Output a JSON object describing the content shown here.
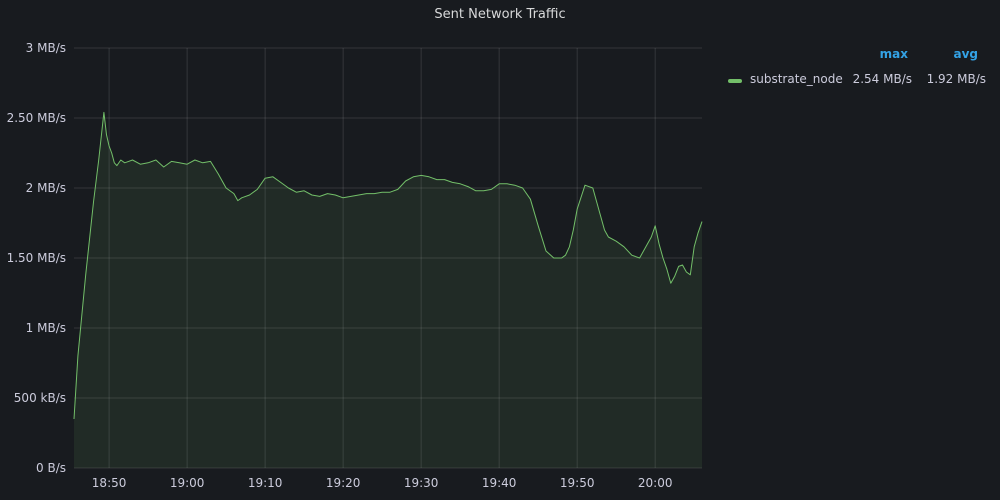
{
  "panel": {
    "title": "Sent Network Traffic"
  },
  "legend": {
    "header_max": "max",
    "header_avg": "avg",
    "series": [
      {
        "name": "substrate_node",
        "max": "2.54 MB/s",
        "avg": "1.92 MB/s",
        "color": "#73bf69"
      }
    ]
  },
  "chart_data": {
    "type": "area",
    "title": "Sent Network Traffic",
    "xlabel": "",
    "ylabel": "",
    "ylim": [
      0,
      3
    ],
    "y_unit": "MB/s",
    "y_ticks": [
      {
        "value": 0,
        "label": "0 B/s"
      },
      {
        "value": 0.5,
        "label": "500 kB/s"
      },
      {
        "value": 1,
        "label": "1 MB/s"
      },
      {
        "value": 1.5,
        "label": "1.50 MB/s"
      },
      {
        "value": 2,
        "label": "2 MB/s"
      },
      {
        "value": 2.5,
        "label": "2.50 MB/s"
      },
      {
        "value": 3,
        "label": "3 MB/s"
      }
    ],
    "xlim": [
      "18:45:30",
      "20:06:00"
    ],
    "x_ticks": [
      "18:50",
      "19:00",
      "19:10",
      "19:20",
      "19:30",
      "19:40",
      "19:50",
      "20:00"
    ],
    "grid": true,
    "legend_placement": "right",
    "series": [
      {
        "name": "substrate_node",
        "color": "#73bf69",
        "x": [
          "18:45:30",
          "18:46:00",
          "18:47:00",
          "18:48:00",
          "18:48:40",
          "18:49:20",
          "18:49:40",
          "18:50:00",
          "18:50:20",
          "18:50:40",
          "18:51:00",
          "18:51:30",
          "18:52:00",
          "18:53:00",
          "18:54:00",
          "18:55:00",
          "18:56:00",
          "18:57:00",
          "18:58:00",
          "18:59:00",
          "19:00:00",
          "19:01:00",
          "19:02:00",
          "19:03:00",
          "19:04:00",
          "19:05:00",
          "19:06:00",
          "19:06:30",
          "19:07:00",
          "19:08:00",
          "19:09:00",
          "19:10:00",
          "19:11:00",
          "19:12:00",
          "19:13:00",
          "19:14:00",
          "19:15:00",
          "19:16:00",
          "19:17:00",
          "19:18:00",
          "19:19:00",
          "19:20:00",
          "19:21:00",
          "19:22:00",
          "19:23:00",
          "19:24:00",
          "19:25:00",
          "19:26:00",
          "19:27:00",
          "19:28:00",
          "19:29:00",
          "19:30:00",
          "19:31:00",
          "19:32:00",
          "19:33:00",
          "19:34:00",
          "19:35:00",
          "19:36:00",
          "19:37:00",
          "19:38:00",
          "19:39:00",
          "19:40:00",
          "19:41:00",
          "19:42:00",
          "19:43:00",
          "19:44:00",
          "19:45:00",
          "19:46:00",
          "19:47:00",
          "19:48:00",
          "19:48:30",
          "19:49:00",
          "19:49:30",
          "19:50:00",
          "19:51:00",
          "19:52:00",
          "19:53:00",
          "19:53:30",
          "19:54:00",
          "19:55:00",
          "19:56:00",
          "19:57:00",
          "19:58:00",
          "19:59:00",
          "19:59:30",
          "20:00:00",
          "20:00:30",
          "20:01:00",
          "20:01:30",
          "20:02:00",
          "20:02:30",
          "20:03:00",
          "20:03:30",
          "20:04:00",
          "20:04:30",
          "20:05:00",
          "20:05:30",
          "20:06:00"
        ],
        "y": [
          0.35,
          0.8,
          1.38,
          1.9,
          2.2,
          2.54,
          2.38,
          2.3,
          2.25,
          2.18,
          2.16,
          2.2,
          2.18,
          2.2,
          2.17,
          2.18,
          2.2,
          2.15,
          2.19,
          2.18,
          2.17,
          2.2,
          2.18,
          2.19,
          2.1,
          2.0,
          1.96,
          1.91,
          1.93,
          1.95,
          1.99,
          2.07,
          2.08,
          2.04,
          2.0,
          1.97,
          1.98,
          1.95,
          1.94,
          1.96,
          1.95,
          1.93,
          1.94,
          1.95,
          1.96,
          1.96,
          1.97,
          1.97,
          1.99,
          2.05,
          2.08,
          2.09,
          2.08,
          2.06,
          2.06,
          2.04,
          2.03,
          2.01,
          1.98,
          1.98,
          1.99,
          2.03,
          2.03,
          2.02,
          2.0,
          1.92,
          1.73,
          1.55,
          1.5,
          1.5,
          1.52,
          1.58,
          1.7,
          1.85,
          2.02,
          2.0,
          1.8,
          1.7,
          1.65,
          1.62,
          1.58,
          1.52,
          1.5,
          1.6,
          1.65,
          1.73,
          1.6,
          1.5,
          1.42,
          1.32,
          1.37,
          1.44,
          1.45,
          1.4,
          1.38,
          1.58,
          1.68,
          1.76
        ]
      }
    ]
  }
}
